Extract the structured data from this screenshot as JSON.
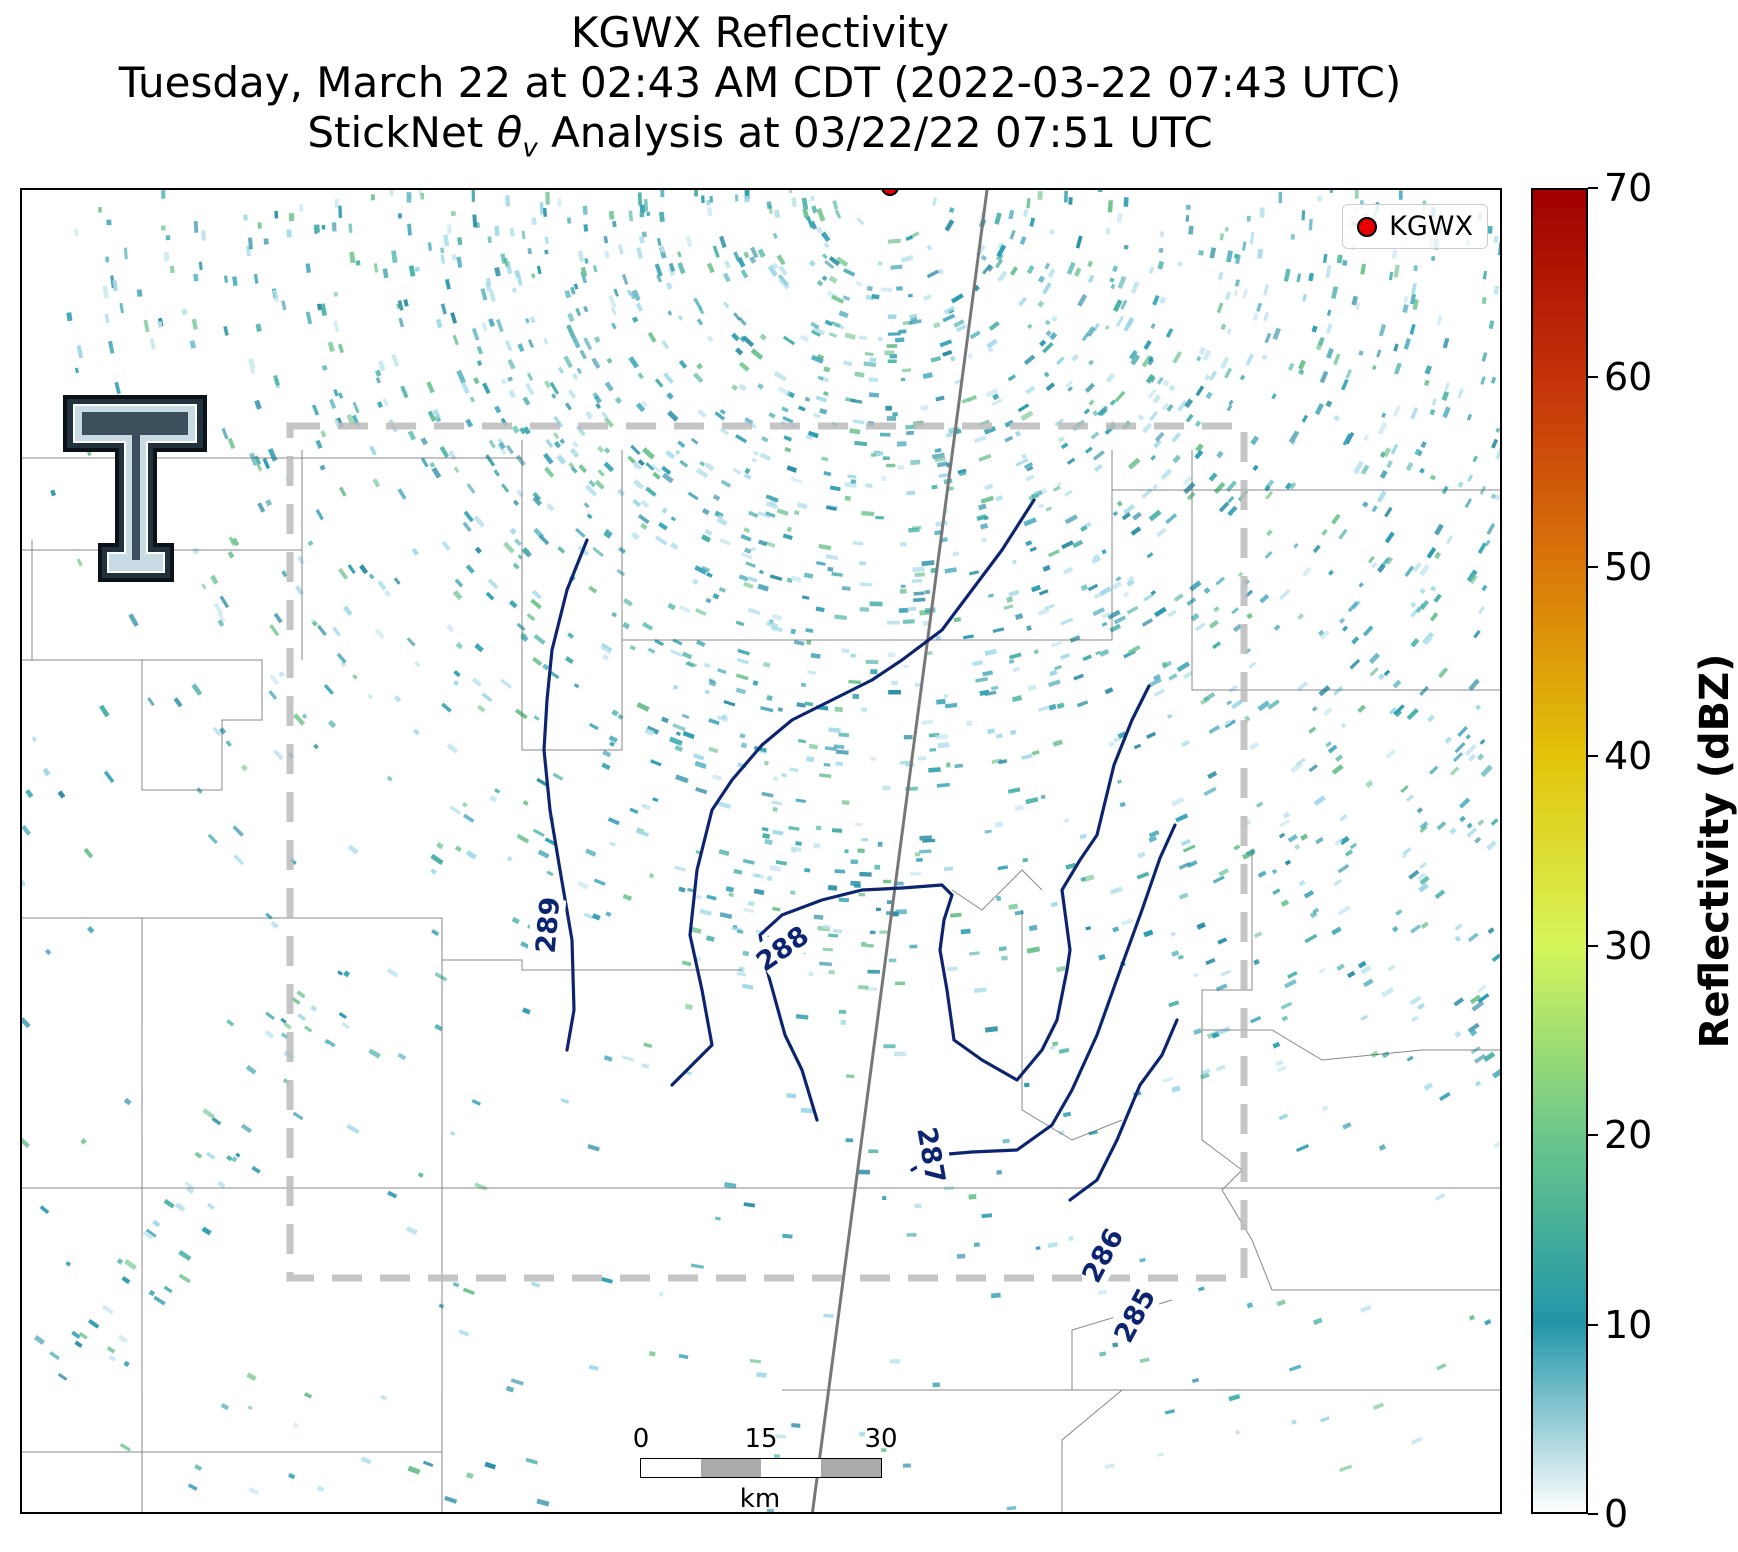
{
  "title": {
    "line1": "KGWX Reflectivity",
    "line2": "Tuesday, March 22 at 02:43 AM CDT (2022-03-22 07:43 UTC)",
    "line3_prefix": "StickNet ",
    "line3_theta": "θ",
    "line3_sub": "v",
    "line3_suffix": " Analysis at 03/22/22 07:51 UTC"
  },
  "legend": {
    "label": "KGWX",
    "marker_color": "#e60000"
  },
  "colorbar": {
    "label": "Reflectivity (dBZ)",
    "min": 0,
    "max": 70,
    "ticks": [
      "0",
      "10",
      "20",
      "30",
      "40",
      "50",
      "60",
      "70"
    ],
    "colors": [
      "#ffffff",
      "#2196a8",
      "#6cc78a",
      "#d6f55a",
      "#e2c40a",
      "#d9780a",
      "#c4320a",
      "#a00000"
    ]
  },
  "contours": {
    "color": "#0d2470",
    "labels": [
      "289",
      "288",
      "287",
      "286",
      "285"
    ]
  },
  "scale_bar": {
    "ticks": [
      "0",
      "15",
      "30"
    ],
    "unit": "km"
  },
  "logo": {
    "text": "T"
  }
}
